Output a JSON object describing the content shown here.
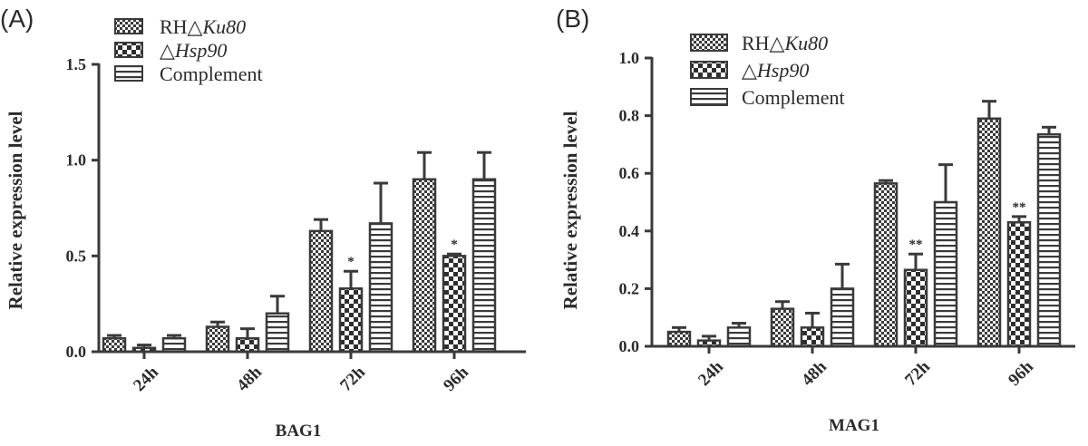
{
  "colors": {
    "ink": "#3a3a3a",
    "bar_fill": "#ffffff"
  },
  "chart_data": [
    {
      "panel": "(A)",
      "type": "bar",
      "categories": [
        "24h",
        "48h",
        "72h",
        "96h"
      ],
      "xlabel": "BAG1",
      "ylabel": "Relative expression level",
      "ylim": [
        0,
        1.5
      ],
      "yticks": [
        "0.0",
        "0.5",
        "1.0",
        "1.5"
      ],
      "legend_position": "top-left",
      "series": [
        {
          "name": "RH△Ku80",
          "pattern": "checker-fine",
          "values": [
            0.07,
            0.13,
            0.63,
            0.9
          ],
          "errors": [
            0.015,
            0.025,
            0.06,
            0.14
          ]
        },
        {
          "name": "△Hsp90",
          "pattern": "checker-coarse",
          "values": [
            0.02,
            0.07,
            0.33,
            0.5
          ],
          "errors": [
            0.015,
            0.05,
            0.09,
            0.01
          ]
        },
        {
          "name": "Complement",
          "pattern": "horizontal-stripes",
          "values": [
            0.07,
            0.2,
            0.67,
            0.9
          ],
          "errors": [
            0.015,
            0.09,
            0.21,
            0.14
          ]
        }
      ],
      "annotations": [
        {
          "category": "72h",
          "series": "△Hsp90",
          "text": "*"
        },
        {
          "category": "96h",
          "series": "△Hsp90",
          "text": "*"
        }
      ]
    },
    {
      "panel": "(B)",
      "type": "bar",
      "categories": [
        "24h",
        "48h",
        "72h",
        "96h"
      ],
      "xlabel": "MAG1",
      "ylabel": "Relative expression level",
      "ylim": [
        0,
        1.0
      ],
      "yticks": [
        "0.0",
        "0.2",
        "0.4",
        "0.6",
        "0.8",
        "1.0"
      ],
      "legend_position": "top-left",
      "series": [
        {
          "name": "RH△Ku80",
          "pattern": "checker-fine",
          "values": [
            0.05,
            0.13,
            0.565,
            0.79
          ],
          "errors": [
            0.015,
            0.025,
            0.01,
            0.06
          ]
        },
        {
          "name": "△Hsp90",
          "pattern": "checker-coarse",
          "values": [
            0.02,
            0.065,
            0.265,
            0.43
          ],
          "errors": [
            0.015,
            0.05,
            0.055,
            0.02
          ]
        },
        {
          "name": "Complement",
          "pattern": "horizontal-stripes",
          "values": [
            0.065,
            0.2,
            0.5,
            0.735
          ],
          "errors": [
            0.015,
            0.085,
            0.13,
            0.025
          ]
        }
      ],
      "annotations": [
        {
          "category": "72h",
          "series": "△Hsp90",
          "text": "**"
        },
        {
          "category": "96h",
          "series": "△Hsp90",
          "text": "**"
        }
      ]
    }
  ]
}
